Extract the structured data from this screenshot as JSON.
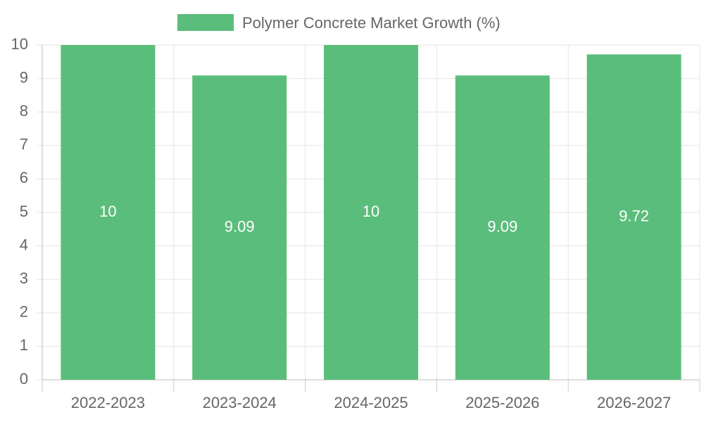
{
  "chart_data": {
    "type": "bar",
    "title": "",
    "xlabel": "",
    "ylabel": "",
    "categories": [
      "2022-2023",
      "2023-2024",
      "2024-2025",
      "2025-2026",
      "2026-2027"
    ],
    "series": [
      {
        "name": "Polymer Concrete Market Growth (%)",
        "values": [
          10,
          9.09,
          10,
          9.09,
          9.72
        ],
        "value_labels": [
          "10",
          "9.09",
          "10",
          "9.09",
          "9.72"
        ],
        "color": "#5bbd7b"
      }
    ],
    "ylim": [
      0,
      10
    ],
    "yticks": [
      0,
      1,
      2,
      3,
      4,
      5,
      6,
      7,
      8,
      9,
      10
    ],
    "grid": true,
    "legend": "top-center"
  }
}
